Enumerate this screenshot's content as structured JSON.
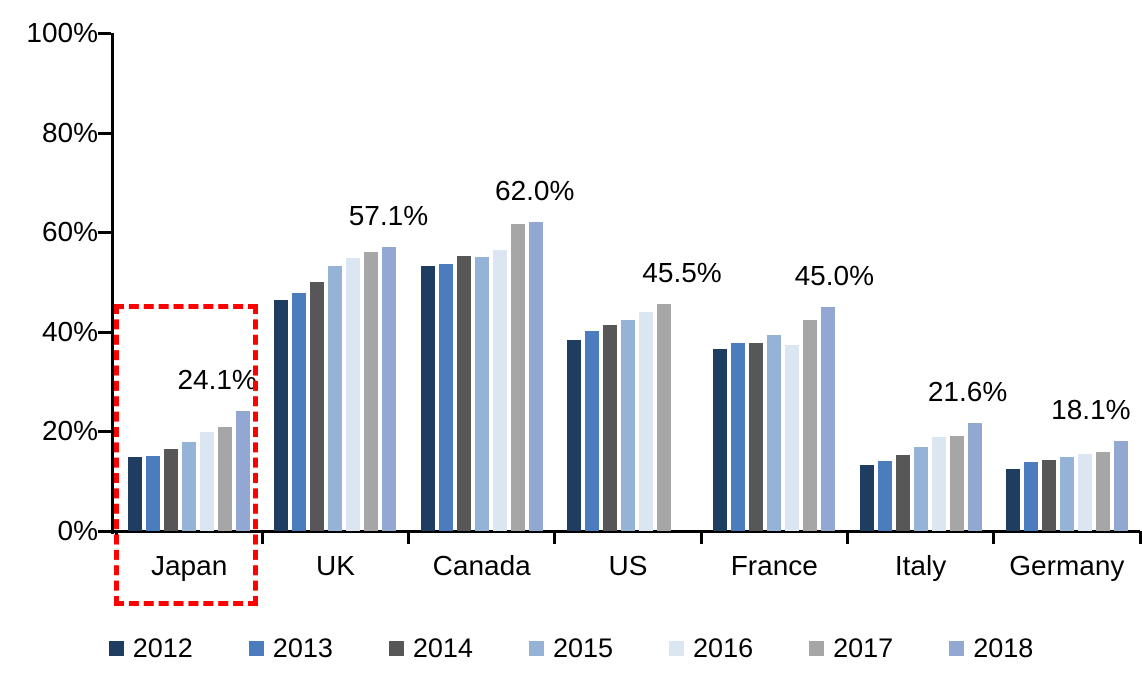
{
  "chart_data": {
    "type": "bar",
    "title": "",
    "xlabel": "",
    "ylabel": "",
    "categories": [
      "Japan",
      "UK",
      "Canada",
      "US",
      "France",
      "Italy",
      "Germany"
    ],
    "series": [
      {
        "name": "2012",
        "color": "#1F3C61",
        "values": [
          14.8,
          46.4,
          53.2,
          38.4,
          36.6,
          13.3,
          12.5
        ]
      },
      {
        "name": "2013",
        "color": "#4A7CBE",
        "values": [
          15.0,
          47.8,
          53.6,
          40.2,
          37.7,
          14.1,
          13.9
        ]
      },
      {
        "name": "2014",
        "color": "#575757",
        "values": [
          16.4,
          50.0,
          55.2,
          41.4,
          37.8,
          15.2,
          14.3
        ]
      },
      {
        "name": "2015",
        "color": "#95B3D7",
        "values": [
          17.9,
          53.3,
          55.0,
          42.4,
          39.3,
          16.8,
          14.8
        ]
      },
      {
        "name": "2016",
        "color": "#DCE6F2",
        "values": [
          19.8,
          54.8,
          56.4,
          43.9,
          37.3,
          18.9,
          15.5
        ]
      },
      {
        "name": "2017",
        "color": "#A6A6A6",
        "values": [
          20.9,
          56.1,
          61.6,
          45.5,
          42.3,
          19.1,
          15.9
        ]
      },
      {
        "name": "2018",
        "color": "#92A7D2",
        "values": [
          24.1,
          57.1,
          62.0,
          null,
          45.0,
          21.6,
          18.1
        ]
      }
    ],
    "value_labels": [
      {
        "category": "Japan",
        "text": "24.1%",
        "dx": 28
      },
      {
        "category": "UK",
        "text": "57.1%",
        "dx": 53
      },
      {
        "category": "Canada",
        "text": "62.0%",
        "dx": 53
      },
      {
        "category": "US",
        "text": "45.5%",
        "dx": 54
      },
      {
        "category": "France",
        "text": "45.0%",
        "dx": 60
      },
      {
        "category": "Italy",
        "text": "21.6%",
        "dx": 47
      },
      {
        "category": "Germany",
        "text": "18.1%",
        "dx": 24
      }
    ],
    "y_axis": {
      "min": 0,
      "max": 100,
      "ticks": [
        {
          "value": 0,
          "label": "0%"
        },
        {
          "value": 20,
          "label": "20%"
        },
        {
          "value": 40,
          "label": "40%"
        },
        {
          "value": 60,
          "label": "60%"
        },
        {
          "value": 80,
          "label": "80%"
        },
        {
          "value": 100,
          "label": "100%"
        }
      ]
    },
    "legend": {
      "position": "bottom",
      "entries": [
        "2012",
        "2013",
        "2014",
        "2015",
        "2016",
        "2017",
        "2018"
      ]
    },
    "annotation": {
      "type": "dashed-box",
      "target_category": "Japan",
      "color": "#FF0000"
    },
    "grid": false
  }
}
